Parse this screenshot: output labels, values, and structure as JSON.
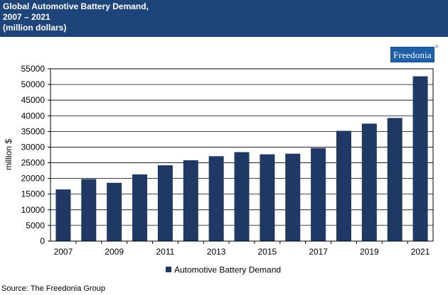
{
  "header": {
    "title_line1": "Global Automotive Battery Demand,",
    "title_line2": "2007 – 2021",
    "title_line3": "(million dollars)"
  },
  "logo": {
    "text": "Freedonia",
    "mark": "®"
  },
  "source": "Source: The Freedonia Group",
  "colors": {
    "header_bg": "#1d4579",
    "bar": "#1f3864"
  },
  "chart_data": {
    "type": "bar",
    "categories": [
      "2007",
      "2008",
      "2009",
      "2010",
      "2011",
      "2012",
      "2013",
      "2014",
      "2015",
      "2016",
      "2017",
      "2018",
      "2019",
      "2020",
      "2021"
    ],
    "tick_labels": [
      "2007",
      "",
      "2009",
      "",
      "2011",
      "",
      "2013",
      "",
      "2015",
      "",
      "2017",
      "",
      "2019",
      "",
      "2021"
    ],
    "series": [
      {
        "name": "Automotive Battery Demand",
        "values": [
          16500,
          19800,
          18600,
          21300,
          24200,
          25800,
          27100,
          28400,
          27700,
          27900,
          29700,
          35200,
          37500,
          39300,
          52600
        ]
      }
    ],
    "ylabel": "million $",
    "xlabel": "",
    "ylim": [
      0,
      55000
    ],
    "yticks": [
      0,
      5000,
      10000,
      15000,
      20000,
      25000,
      30000,
      35000,
      40000,
      45000,
      50000,
      55000
    ],
    "grid": true,
    "legend": "bottom"
  }
}
